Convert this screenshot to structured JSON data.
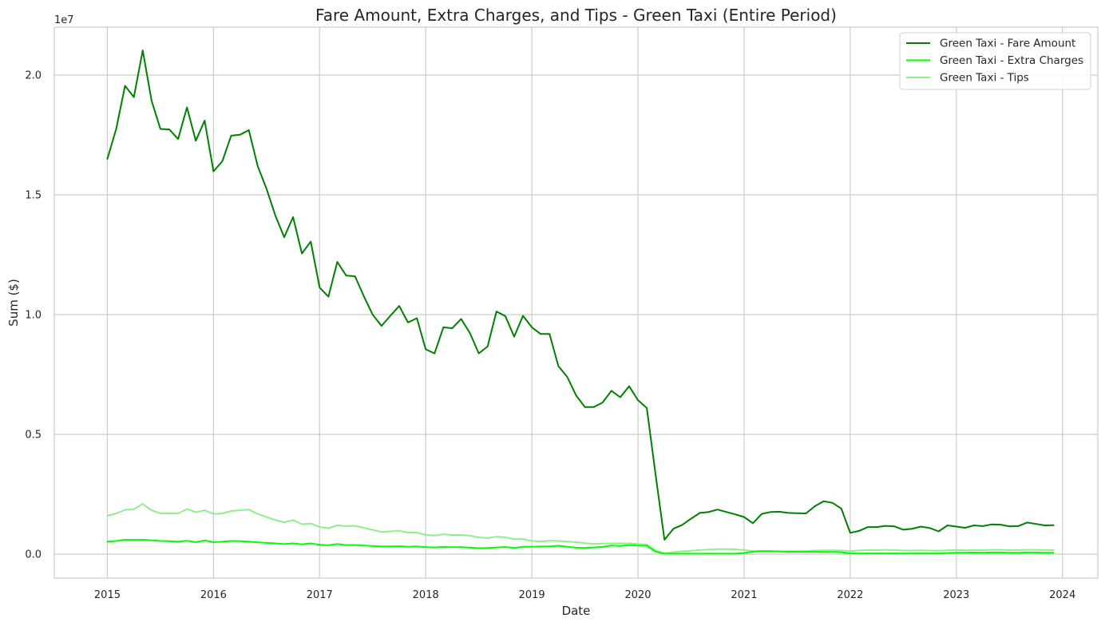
{
  "chart_data": {
    "type": "line",
    "title": "Fare Amount, Extra Charges, and Tips - Green Taxi (Entire Period)",
    "xlabel": "Date",
    "ylabel": "Sum ($)",
    "y_offset_label": "1e7",
    "x_ticks": [
      "2015",
      "2016",
      "2017",
      "2018",
      "2019",
      "2020",
      "2021",
      "2022",
      "2023",
      "2024"
    ],
    "y_ticks": [
      "0.0",
      "0.5",
      "1.0",
      "1.5",
      "2.0"
    ],
    "xlim": [
      "2014-07",
      "2024-05"
    ],
    "ylim": [
      -0.1,
      2.2
    ],
    "y_scale_note": "values in units of 1e7 dollars",
    "grid": true,
    "legend_position": "top-right",
    "x_start": "2015-01",
    "x_frequency": "monthly",
    "series": [
      {
        "name": "Green Taxi - Fare Amount",
        "color": "#008000",
        "values": [
          1.65,
          1.775,
          1.955,
          1.908,
          2.103,
          1.893,
          1.775,
          1.773,
          1.733,
          1.865,
          1.726,
          1.81,
          1.598,
          1.64,
          1.747,
          1.751,
          1.77,
          1.62,
          1.525,
          1.413,
          1.323,
          1.407,
          1.255,
          1.305,
          1.113,
          1.075,
          1.22,
          1.163,
          1.16,
          1.077,
          1.0,
          0.953,
          0.995,
          1.036,
          0.967,
          0.985,
          0.855,
          0.838,
          0.947,
          0.943,
          0.982,
          0.923,
          0.838,
          0.867,
          1.013,
          0.994,
          0.908,
          0.995,
          0.947,
          0.919,
          0.919,
          0.785,
          0.74,
          0.663,
          0.614,
          0.614,
          0.633,
          0.682,
          0.655,
          0.701,
          0.643,
          0.61,
          0.33,
          0.06,
          0.106,
          0.122,
          0.148,
          0.172,
          0.176,
          0.186,
          0.176,
          0.166,
          0.155,
          0.129,
          0.168,
          0.176,
          0.177,
          0.172,
          0.171,
          0.17,
          0.2,
          0.221,
          0.214,
          0.19,
          0.089,
          0.097,
          0.113,
          0.113,
          0.118,
          0.116,
          0.102,
          0.106,
          0.115,
          0.109,
          0.095,
          0.12,
          0.115,
          0.11,
          0.12,
          0.117,
          0.124,
          0.123,
          0.116,
          0.117,
          0.132,
          0.126,
          0.12,
          0.121
        ]
      },
      {
        "name": "Green Taxi - Extra Charges",
        "color": "#00ff00",
        "values": [
          0.052,
          0.055,
          0.06,
          0.059,
          0.06,
          0.058,
          0.055,
          0.054,
          0.052,
          0.056,
          0.05,
          0.057,
          0.05,
          0.052,
          0.055,
          0.054,
          0.052,
          0.049,
          0.047,
          0.045,
          0.042,
          0.045,
          0.041,
          0.045,
          0.039,
          0.037,
          0.042,
          0.038,
          0.038,
          0.036,
          0.034,
          0.032,
          0.032,
          0.033,
          0.031,
          0.032,
          0.029,
          0.028,
          0.03,
          0.029,
          0.029,
          0.027,
          0.025,
          0.026,
          0.028,
          0.03,
          0.026,
          0.031,
          0.031,
          0.032,
          0.032,
          0.035,
          0.031,
          0.027,
          0.026,
          0.028,
          0.03,
          0.036,
          0.034,
          0.038,
          0.036,
          0.035,
          0.01,
          0.002,
          0.002,
          0.002,
          0.002,
          0.002,
          0.002,
          0.002,
          0.002,
          0.002,
          0.005,
          0.01,
          0.012,
          0.012,
          0.011,
          0.01,
          0.01,
          0.01,
          0.01,
          0.009,
          0.009,
          0.008,
          0.003,
          0.003,
          0.003,
          0.003,
          0.003,
          0.003,
          0.003,
          0.003,
          0.003,
          0.003,
          0.003,
          0.005,
          0.006,
          0.006,
          0.007,
          0.006,
          0.007,
          0.007,
          0.006,
          0.006,
          0.007,
          0.007,
          0.006,
          0.006
        ]
      },
      {
        "name": "Green Taxi - Tips",
        "color": "#90ee90",
        "values": [
          0.16,
          0.17,
          0.185,
          0.188,
          0.21,
          0.183,
          0.17,
          0.17,
          0.17,
          0.188,
          0.175,
          0.183,
          0.168,
          0.17,
          0.18,
          0.183,
          0.186,
          0.168,
          0.155,
          0.142,
          0.133,
          0.142,
          0.125,
          0.128,
          0.113,
          0.108,
          0.12,
          0.117,
          0.118,
          0.11,
          0.101,
          0.093,
          0.095,
          0.098,
          0.09,
          0.09,
          0.08,
          0.078,
          0.083,
          0.08,
          0.08,
          0.077,
          0.07,
          0.067,
          0.073,
          0.07,
          0.063,
          0.063,
          0.055,
          0.053,
          0.056,
          0.055,
          0.053,
          0.05,
          0.046,
          0.043,
          0.044,
          0.045,
          0.045,
          0.045,
          0.042,
          0.04,
          0.015,
          0.004,
          0.008,
          0.012,
          0.014,
          0.017,
          0.019,
          0.021,
          0.021,
          0.02,
          0.017,
          0.013,
          0.013,
          0.013,
          0.012,
          0.012,
          0.012,
          0.013,
          0.015,
          0.016,
          0.016,
          0.015,
          0.013,
          0.015,
          0.017,
          0.017,
          0.018,
          0.017,
          0.015,
          0.015,
          0.016,
          0.015,
          0.014,
          0.016,
          0.017,
          0.016,
          0.017,
          0.017,
          0.018,
          0.018,
          0.017,
          0.017,
          0.018,
          0.018,
          0.017,
          0.017
        ]
      }
    ]
  }
}
